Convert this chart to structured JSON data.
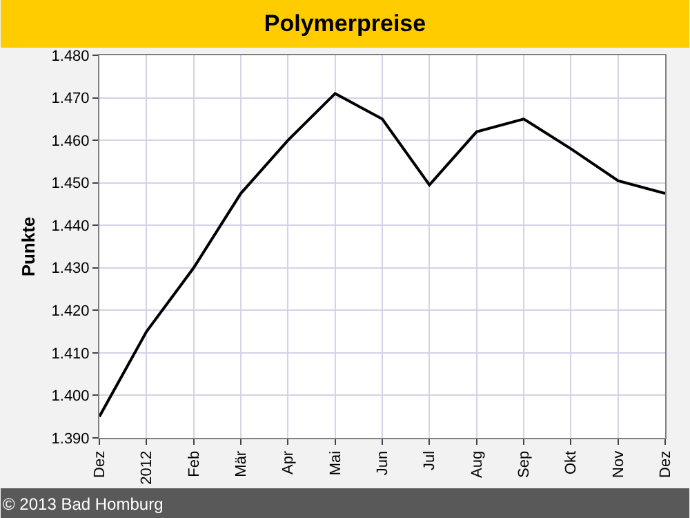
{
  "chart_data": {
    "type": "line",
    "title": "Polymerpreise",
    "ylabel": "Punkte",
    "categories": [
      "Dez",
      "2012",
      "Feb",
      "Mär",
      "Apr",
      "Mai",
      "Jun",
      "Jul",
      "Aug",
      "Sep",
      "Okt",
      "Nov",
      "Dez"
    ],
    "series": [
      {
        "color": "#000000",
        "values": [
          1395,
          1415,
          1430,
          1447.5,
          1460,
          1471,
          1465,
          1449.5,
          1462,
          1465,
          1458,
          1450.5,
          1447.5
        ]
      }
    ],
    "ylim": [
      1390,
      1480
    ],
    "yticks": [
      {
        "value": 1390,
        "label": "1.390"
      },
      {
        "value": 1400,
        "label": "1.400"
      },
      {
        "value": 1410,
        "label": "1.410"
      },
      {
        "value": 1420,
        "label": "1.420"
      },
      {
        "value": 1430,
        "label": "1.430"
      },
      {
        "value": 1440,
        "label": "1.440"
      },
      {
        "value": 1450,
        "label": "1.450"
      },
      {
        "value": 1460,
        "label": "1.460"
      },
      {
        "value": 1470,
        "label": "1.470"
      },
      {
        "value": 1480,
        "label": "1.480"
      }
    ],
    "grid": true,
    "marker": "none",
    "line_style": "solid",
    "annotations": [
      "© 2013 Bad Homburg"
    ]
  }
}
